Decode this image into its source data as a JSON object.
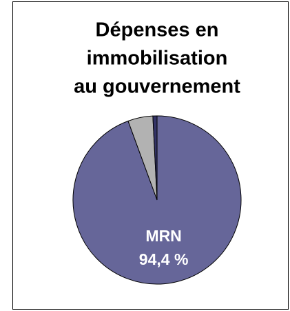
{
  "chart_data": {
    "type": "pie",
    "title": [
      "Dépenses en",
      "immobilisation",
      "au gouvernement"
    ],
    "categories": [
      "MRN",
      null,
      null
    ],
    "values": [
      94.4,
      4.8,
      0.8
    ],
    "value_labels": [
      "94,4 %",
      null,
      null
    ],
    "colors": [
      "#666699",
      "#b2b2b2",
      "#333366"
    ]
  }
}
